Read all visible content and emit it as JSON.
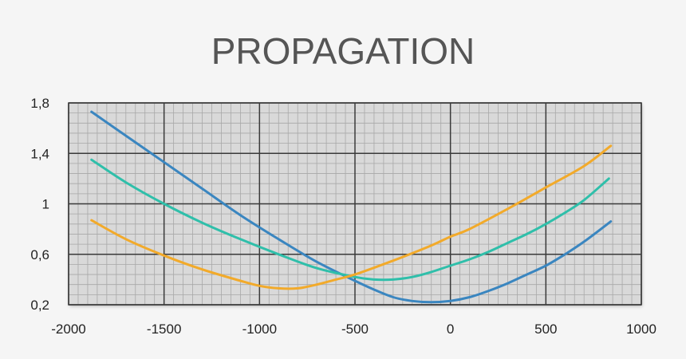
{
  "chart_data": {
    "type": "line",
    "title": "PROPAGATION",
    "xlabel": "",
    "ylabel": "",
    "xlim": [
      -2000,
      1000
    ],
    "ylim": [
      0.2,
      1.8
    ],
    "x_ticks": [
      -2000,
      -1500,
      -1000,
      -500,
      0,
      500,
      1000
    ],
    "x_tick_labels": [
      "-2000",
      "-1500",
      "-1000",
      "-500",
      "0",
      "500",
      "1000"
    ],
    "y_ticks": [
      0.2,
      0.6,
      1.0,
      1.4,
      1.8
    ],
    "y_tick_labels": [
      "0,2",
      "0,6",
      "1",
      "1,4",
      "1,8"
    ],
    "grid": true,
    "plot_background": "#d9d9d9",
    "major_grid_color": "#3a3a3a",
    "minor_grid_color": "#a8a8a8",
    "series": [
      {
        "color": "#3a86c0",
        "x": [
          -1880,
          -1700,
          -1500,
          -1300,
          -1100,
          -900,
          -700,
          -500,
          -400,
          -300,
          -200,
          -100,
          0,
          100,
          200,
          300,
          400,
          500,
          600,
          700,
          840
        ],
        "y": [
          1.73,
          1.54,
          1.33,
          1.12,
          0.91,
          0.72,
          0.54,
          0.39,
          0.32,
          0.26,
          0.23,
          0.22,
          0.23,
          0.26,
          0.31,
          0.37,
          0.44,
          0.51,
          0.6,
          0.7,
          0.86
        ]
      },
      {
        "color": "#2fbfaa",
        "x": [
          -1880,
          -1700,
          -1500,
          -1300,
          -1100,
          -900,
          -700,
          -500,
          -400,
          -300,
          -200,
          -100,
          0,
          100,
          200,
          300,
          400,
          500,
          600,
          700,
          830
        ],
        "y": [
          1.35,
          1.17,
          1.0,
          0.85,
          0.72,
          0.6,
          0.49,
          0.42,
          0.4,
          0.4,
          0.42,
          0.46,
          0.51,
          0.56,
          0.62,
          0.69,
          0.76,
          0.84,
          0.93,
          1.03,
          1.2
        ]
      },
      {
        "color": "#f2aa2a",
        "x": [
          -1880,
          -1700,
          -1500,
          -1300,
          -1100,
          -1000,
          -900,
          -800,
          -700,
          -600,
          -500,
          -300,
          -100,
          0,
          100,
          300,
          500,
          700,
          840
        ],
        "y": [
          0.87,
          0.72,
          0.59,
          0.48,
          0.39,
          0.35,
          0.33,
          0.33,
          0.36,
          0.4,
          0.44,
          0.55,
          0.67,
          0.74,
          0.8,
          0.96,
          1.13,
          1.3,
          1.46
        ]
      }
    ]
  }
}
